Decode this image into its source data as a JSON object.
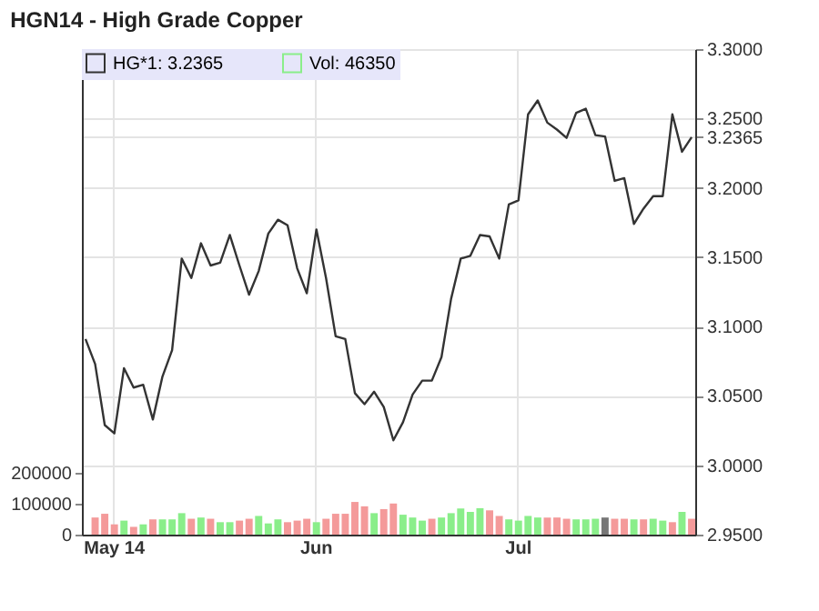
{
  "chart_data": {
    "type": "line",
    "title": "HGN14 - High Grade Copper",
    "categories": [
      null,
      null,
      null,
      "May 14",
      null,
      null,
      null,
      null,
      null,
      null,
      null,
      null,
      null,
      null,
      null,
      null,
      null,
      null,
      null,
      null,
      null,
      null,
      null,
      null,
      "Jun",
      null,
      null,
      null,
      null,
      null,
      null,
      null,
      null,
      null,
      null,
      null,
      null,
      null,
      null,
      null,
      null,
      null,
      null,
      null,
      null,
      "Jul",
      null,
      null,
      null,
      null,
      null,
      null,
      null,
      null,
      null,
      null,
      null,
      null,
      null,
      null,
      null,
      null,
      null,
      null
    ],
    "series": [
      {
        "name": "HG*1: 3.2365",
        "axis": "y2",
        "color": "#333333",
        "values": [
          3.091,
          3.073,
          3.029,
          3.023,
          3.07,
          3.056,
          3.058,
          3.033,
          3.064,
          3.083,
          3.149,
          3.135,
          3.16,
          3.144,
          3.146,
          3.166,
          3.144,
          3.123,
          3.14,
          3.167,
          3.177,
          3.173,
          3.142,
          3.124,
          3.17,
          3.135,
          3.093,
          3.091,
          3.052,
          3.044,
          3.053,
          3.042,
          3.018,
          3.031,
          3.051,
          3.061,
          3.061,
          3.078,
          3.12,
          3.149,
          3.151,
          3.166,
          3.165,
          3.149,
          3.188,
          3.191,
          3.253,
          3.263,
          3.247,
          3.242,
          3.236,
          3.254,
          3.257,
          3.238,
          3.237,
          3.205,
          3.207,
          3.174,
          3.185,
          3.194,
          3.194,
          3.253,
          3.226,
          3.2365
        ]
      },
      {
        "name": "Vol: 46350",
        "type": "bar",
        "color": "#8aee8a",
        "values": [
          null,
          55000,
          67000,
          33000,
          45000,
          25000,
          33000,
          49000,
          49000,
          49000,
          69000,
          51000,
          55000,
          51000,
          40000,
          40000,
          45000,
          51000,
          60000,
          36000,
          49000,
          40000,
          45000,
          51000,
          40000,
          51000,
          67000,
          67000,
          105000,
          91000,
          69000,
          82000,
          100000,
          64000,
          55000,
          45000,
          51000,
          55000,
          69000,
          84000,
          73000,
          85000,
          78000,
          60000,
          49000,
          45000,
          60000,
          55000,
          55000,
          55000,
          51000,
          49000,
          49000,
          51000,
          55000,
          51000,
          51000,
          49000,
          49000,
          51000,
          45000,
          40000,
          73000,
          51000
        ],
        "colors": [
          null,
          "#f49a9a",
          "#f49a9a",
          "#f49a9a",
          "#8aee8a",
          "#f49a9a",
          "#8aee8a",
          "#f49a9a",
          "#8aee8a",
          "#8aee8a",
          "#8aee8a",
          "#f49a9a",
          "#8aee8a",
          "#f49a9a",
          "#8aee8a",
          "#8aee8a",
          "#f49a9a",
          "#f49a9a",
          "#8aee8a",
          "#8aee8a",
          "#8aee8a",
          "#f49a9a",
          "#f49a9a",
          "#f49a9a",
          "#8aee8a",
          "#f49a9a",
          "#f49a9a",
          "#f49a9a",
          "#f49a9a",
          "#f49a9a",
          "#8aee8a",
          "#f49a9a",
          "#f49a9a",
          "#8aee8a",
          "#8aee8a",
          "#8aee8a",
          "#f49a9a",
          "#8aee8a",
          "#8aee8a",
          "#8aee8a",
          "#8aee8a",
          "#8aee8a",
          "#f49a9a",
          "#f49a9a",
          "#8aee8a",
          "#8aee8a",
          "#8aee8a",
          "#8aee8a",
          "#f49a9a",
          "#f49a9a",
          "#f49a9a",
          "#8aee8a",
          "#8aee8a",
          "#8aee8a",
          "#777777",
          "#f49a9a",
          "#f49a9a",
          "#8aee8a",
          "#f49a9a",
          "#8aee8a",
          "#8aee8a",
          "#f49a9a",
          "#8aee8a",
          "#f49a9a"
        ]
      }
    ],
    "ylim": [
      0,
      1560000
    ],
    "yticks": [
      0,
      100000,
      200000
    ],
    "y2lim": [
      2.95,
      3.3
    ],
    "y2ticks": [
      {
        "value": 2.95,
        "label": "2.9500"
      },
      {
        "value": 3.0,
        "label": "3.0000"
      },
      {
        "value": 3.05,
        "label": "3.0500"
      },
      {
        "value": 3.1,
        "label": "3.1000"
      },
      {
        "value": 3.15,
        "label": "3.1500"
      },
      {
        "value": 3.2,
        "label": "3.2000"
      },
      {
        "value": 3.2365,
        "label": "3.2365"
      },
      {
        "value": 3.25,
        "label": "3.2500"
      },
      {
        "value": 3.3,
        "label": "3.3000"
      }
    ],
    "grid": true,
    "legend": "top left",
    "marker": "none",
    "line_style": "solid"
  }
}
